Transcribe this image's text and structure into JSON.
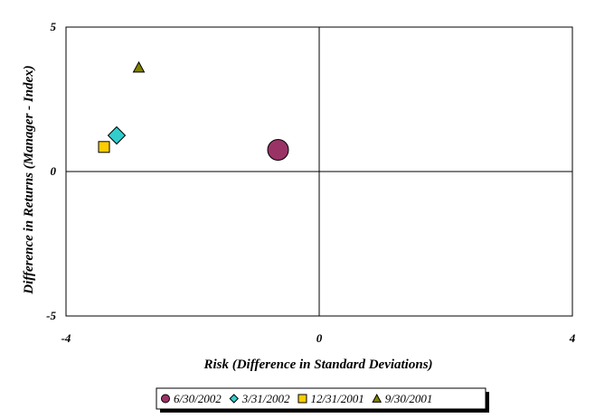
{
  "chart_data": {
    "type": "scatter",
    "title": "",
    "xlabel": "Risk (Difference in Standard Deviations)",
    "ylabel": "Difference in Returns (Manager - Index)",
    "xlim": [
      -4,
      4
    ],
    "ylim": [
      -5,
      5
    ],
    "x_ticks": [
      "-4",
      "0",
      "4"
    ],
    "y_ticks": [
      "5",
      "0",
      "-5"
    ],
    "grid": false,
    "crosshair_at_origin": true,
    "legend_position": "bottom-center",
    "series": [
      {
        "name": "6/30/2002",
        "marker": "circle",
        "color": "#993366",
        "x": -0.65,
        "y": 0.75,
        "size": "large"
      },
      {
        "name": "3/31/2002",
        "marker": "diamond",
        "color": "#33CCCC",
        "x": -3.2,
        "y": 1.25,
        "size": "medium"
      },
      {
        "name": "12/31/2001",
        "marker": "square",
        "color": "#FFCC00",
        "x": -3.4,
        "y": 0.85,
        "size": "small"
      },
      {
        "name": "9/30/2001",
        "marker": "triangle",
        "color": "#808000",
        "x": -2.85,
        "y": 3.6,
        "size": "small"
      }
    ]
  }
}
